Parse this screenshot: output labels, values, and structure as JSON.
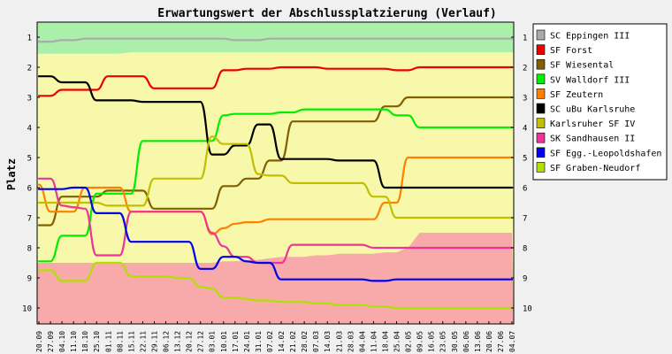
{
  "chart_data": {
    "type": "line",
    "title": "Erwartungswert der Abschlussplatzierung (Verlauf)",
    "ylabel": "Platz",
    "xlabel": "",
    "ylim": [
      1,
      10
    ],
    "y_inverted": true,
    "yticks": [
      1,
      2,
      3,
      4,
      5,
      6,
      7,
      8,
      9,
      10
    ],
    "grid": false,
    "legend_position": "right",
    "background_zones": [
      {
        "name": "promotion",
        "color": "#aaf0aa"
      },
      {
        "name": "middle",
        "color": "#f8f8aa"
      },
      {
        "name": "relegation",
        "color": "#f8aaaa"
      }
    ],
    "x": [
      "20.09",
      "27.09",
      "04.10",
      "11.10",
      "18.10",
      "25.10",
      "01.11",
      "08.11",
      "15.11",
      "22.11",
      "29.11",
      "06.12",
      "13.12",
      "20.12",
      "27.12",
      "03.01",
      "10.01",
      "17.01",
      "24.01",
      "31.01",
      "07.02",
      "14.02",
      "21.02",
      "28.02",
      "07.03",
      "14.03",
      "21.03",
      "28.03",
      "04.04",
      "11.04",
      "18.04",
      "25.04",
      "02.05",
      "09.05",
      "16.05",
      "23.05",
      "30.05",
      "06.06",
      "13.06",
      "20.06",
      "27.06",
      "04.07"
    ],
    "series": [
      {
        "name": "SC Eppingen III",
        "color": "#aaaaaa",
        "values": [
          1.15,
          1.15,
          1.1,
          1.1,
          1.05,
          1.05,
          1.05,
          1.05,
          1.05,
          1.05,
          1.05,
          1.05,
          1.05,
          1.05,
          1.05,
          1.05,
          1.05,
          1.1,
          1.1,
          1.1,
          1.05,
          1.05,
          1.05,
          1.05,
          1.05,
          1.05,
          1.05,
          1.05,
          1.05,
          1.05,
          1.05,
          1.05,
          1.05,
          1.05,
          1.05,
          1.05,
          1.05,
          1.05,
          1.05,
          1.05,
          1.05,
          1.05
        ]
      },
      {
        "name": "SF Forst",
        "color": "#ee0000",
        "values": [
          2.95,
          2.95,
          2.75,
          2.75,
          2.75,
          2.75,
          2.3,
          2.3,
          2.3,
          2.3,
          2.7,
          2.7,
          2.7,
          2.7,
          2.7,
          2.7,
          2.1,
          2.1,
          2.05,
          2.05,
          2.05,
          2.0,
          2.0,
          2.0,
          2.0,
          2.05,
          2.05,
          2.05,
          2.05,
          2.05,
          2.05,
          2.1,
          2.1,
          2.0,
          2.0,
          2.0,
          2.0,
          2.0,
          2.0,
          2.0,
          2.0,
          2.0
        ]
      },
      {
        "name": "SF Wiesental",
        "color": "#806000",
        "values": [
          7.25,
          7.25,
          6.3,
          6.3,
          6.3,
          6.3,
          6.1,
          6.1,
          6.1,
          6.1,
          6.7,
          6.7,
          6.7,
          6.7,
          6.7,
          6.7,
          5.95,
          5.95,
          5.7,
          5.7,
          5.1,
          5.1,
          3.8,
          3.8,
          3.8,
          3.8,
          3.8,
          3.8,
          3.8,
          3.8,
          3.3,
          3.3,
          3.0,
          3.0,
          3.0,
          3.0,
          3.0,
          3.0,
          3.0,
          3.0,
          3.0,
          3.0
        ]
      },
      {
        "name": "SV Walldorf III",
        "color": "#00ee00",
        "values": [
          8.45,
          8.45,
          7.6,
          7.6,
          7.6,
          6.2,
          6.2,
          6.2,
          6.2,
          4.45,
          4.45,
          4.45,
          4.45,
          4.45,
          4.45,
          4.45,
          3.6,
          3.55,
          3.55,
          3.55,
          3.55,
          3.5,
          3.5,
          3.4,
          3.4,
          3.4,
          3.4,
          3.4,
          3.4,
          3.4,
          3.4,
          3.6,
          3.6,
          4.0,
          4.0,
          4.0,
          4.0,
          4.0,
          4.0,
          4.0,
          4.0,
          4.0
        ]
      },
      {
        "name": "SF Zeutern",
        "color": "#ff8000",
        "values": [
          5.9,
          6.8,
          6.8,
          6.8,
          6.0,
          6.0,
          6.0,
          6.0,
          6.8,
          6.8,
          6.8,
          6.8,
          6.8,
          6.8,
          6.8,
          7.55,
          7.35,
          7.2,
          7.15,
          7.15,
          7.05,
          7.05,
          7.05,
          7.05,
          7.05,
          7.05,
          7.05,
          7.05,
          7.05,
          7.05,
          6.5,
          6.5,
          5.0,
          5.0,
          5.0,
          5.0,
          5.0,
          5.0,
          5.0,
          5.0,
          5.0,
          5.0
        ]
      },
      {
        "name": "SC uBu Karlsruhe",
        "color": "#000000",
        "values": [
          2.3,
          2.3,
          2.5,
          2.5,
          2.5,
          3.1,
          3.1,
          3.1,
          3.1,
          3.15,
          3.15,
          3.15,
          3.15,
          3.15,
          3.15,
          4.9,
          4.9,
          4.6,
          4.6,
          3.9,
          3.9,
          5.05,
          5.05,
          5.05,
          5.05,
          5.05,
          5.1,
          5.1,
          5.1,
          5.1,
          6.0,
          6.0,
          6.0,
          6.0,
          6.0,
          6.0,
          6.0,
          6.0,
          6.0,
          6.0,
          6.0,
          6.0
        ]
      },
      {
        "name": "Karlsruher SF IV",
        "color": "#c0c000",
        "values": [
          6.5,
          6.5,
          6.5,
          6.5,
          6.5,
          6.5,
          6.6,
          6.6,
          6.6,
          6.6,
          5.7,
          5.7,
          5.7,
          5.7,
          5.7,
          4.3,
          4.55,
          4.55,
          4.55,
          5.55,
          5.6,
          5.6,
          5.85,
          5.85,
          5.85,
          5.85,
          5.85,
          5.85,
          5.85,
          6.3,
          6.3,
          7.0,
          7.0,
          7.0,
          7.0,
          7.0,
          7.0,
          7.0,
          7.0,
          7.0,
          7.0,
          7.0
        ]
      },
      {
        "name": "SK Sandhausen II",
        "color": "#ee3399",
        "values": [
          5.7,
          5.7,
          6.6,
          6.65,
          6.7,
          8.25,
          8.25,
          8.25,
          6.8,
          6.8,
          6.8,
          6.8,
          6.8,
          6.8,
          6.8,
          7.5,
          7.95,
          8.3,
          8.3,
          8.5,
          8.5,
          8.5,
          7.9,
          7.9,
          7.9,
          7.9,
          7.9,
          7.9,
          7.9,
          8.0,
          8.0,
          8.0,
          8.0,
          8.0,
          8.0,
          8.0,
          8.0,
          8.0,
          8.0,
          8.0,
          8.0,
          8.0
        ]
      },
      {
        "name": "SF Egg.-Leopoldshafen",
        "color": "#0000ee",
        "values": [
          6.05,
          6.05,
          6.05,
          6.0,
          6.0,
          6.85,
          6.85,
          6.85,
          7.8,
          7.8,
          7.8,
          7.8,
          7.8,
          7.8,
          8.7,
          8.7,
          8.3,
          8.3,
          8.45,
          8.5,
          8.5,
          9.05,
          9.05,
          9.05,
          9.05,
          9.05,
          9.05,
          9.05,
          9.05,
          9.1,
          9.1,
          9.05,
          9.05,
          9.05,
          9.05,
          9.05,
          9.05,
          9.05,
          9.05,
          9.05,
          9.05,
          9.05
        ]
      },
      {
        "name": "SF Graben-Neudorf",
        "color": "#b0e000",
        "values": [
          8.75,
          8.75,
          9.1,
          9.1,
          9.1,
          8.5,
          8.5,
          8.5,
          8.95,
          8.95,
          8.95,
          8.95,
          9.0,
          9.0,
          9.3,
          9.35,
          9.65,
          9.65,
          9.7,
          9.75,
          9.75,
          9.8,
          9.8,
          9.8,
          9.85,
          9.85,
          9.9,
          9.9,
          9.9,
          9.95,
          9.95,
          10.0,
          10.0,
          10.0,
          10.0,
          10.0,
          10.0,
          10.0,
          10.0,
          10.0,
          10.0,
          10.0
        ]
      }
    ]
  }
}
